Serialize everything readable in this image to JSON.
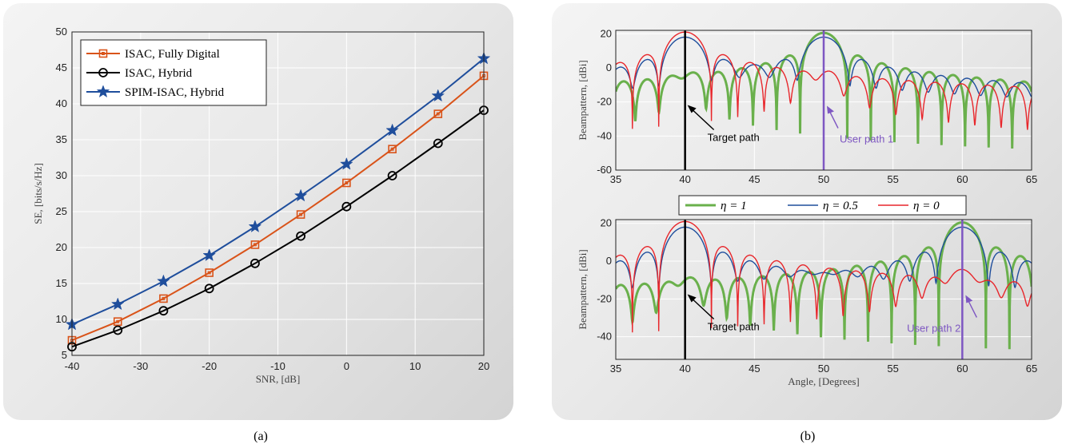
{
  "captions": {
    "a": "(a)",
    "b": "(b)"
  },
  "chart_data": [
    {
      "type": "line",
      "title": "",
      "xlabel": "SNR, [dB]",
      "ylabel": "SE, [bits/s/Hz]",
      "xlim": [
        -40,
        20
      ],
      "ylim": [
        5,
        50
      ],
      "xticks": [
        -40,
        -30,
        -20,
        -10,
        0,
        10,
        20
      ],
      "yticks": [
        5,
        10,
        15,
        20,
        25,
        30,
        35,
        40,
        45,
        50
      ],
      "grid": true,
      "legend_position": "top-left",
      "x": [
        -40,
        -33.33,
        -26.67,
        -20,
        -13.33,
        -6.67,
        0,
        6.67,
        13.33,
        20
      ],
      "series": [
        {
          "name": "ISAC, Fully Digital",
          "marker": "square",
          "color": "#d95319",
          "values": [
            7.1,
            9.7,
            12.9,
            16.5,
            20.4,
            24.6,
            29.0,
            33.7,
            38.6,
            43.9
          ]
        },
        {
          "name": "ISAC, Hybrid",
          "marker": "circle",
          "color": "#000000",
          "values": [
            6.2,
            8.5,
            11.2,
            14.3,
            17.8,
            21.6,
            25.7,
            30.0,
            34.5,
            39.1
          ]
        },
        {
          "name": "SPIM-ISAC, Hybrid",
          "marker": "star",
          "color": "#1f4e9c",
          "values": [
            9.3,
            12.1,
            15.3,
            18.9,
            22.9,
            27.2,
            31.6,
            36.3,
            41.1,
            46.3
          ]
        }
      ]
    },
    {
      "type": "line",
      "title": "",
      "xlabel": "",
      "ylabel": "Beampattern, [dBi]",
      "xlim": [
        35,
        65
      ],
      "ylim": [
        -60,
        22
      ],
      "xticks": [
        35,
        40,
        45,
        50,
        55,
        60,
        65
      ],
      "yticks": [
        -60,
        -40,
        -20,
        0,
        20
      ],
      "grid": true,
      "annotations": [
        {
          "text": "Target path",
          "x": 40,
          "color": "#000000"
        },
        {
          "text": "User path 1",
          "x": 50,
          "color": "#7e57c2"
        }
      ],
      "series": [
        {
          "name": "η = 1",
          "color": "#6ab04c",
          "main_lobes": [
            40,
            50
          ],
          "peaks_db": [
            -6,
            20.5
          ]
        },
        {
          "name": "η = 0.5",
          "color": "#1f4e9c",
          "main_lobes": [
            40,
            50
          ],
          "peaks_db": [
            18,
            18
          ]
        },
        {
          "name": "η = 0",
          "color": "#e8262b",
          "main_lobes": [
            40,
            50
          ],
          "peaks_db": [
            21,
            -6
          ]
        }
      ]
    },
    {
      "type": "line",
      "title": "",
      "xlabel": "Angle, [Degrees]",
      "ylabel": "Beampattern, [dBi]",
      "xlim": [
        35,
        65
      ],
      "ylim": [
        -52,
        22
      ],
      "xticks": [
        35,
        40,
        45,
        50,
        55,
        60,
        65
      ],
      "yticks": [
        -40,
        -20,
        0,
        20
      ],
      "grid": true,
      "annotations": [
        {
          "text": "Target path",
          "x": 40,
          "color": "#000000"
        },
        {
          "text": "User path 2",
          "x": 60,
          "color": "#7e57c2"
        }
      ],
      "series": [
        {
          "name": "η = 1",
          "color": "#6ab04c",
          "main_lobes": [
            40,
            60
          ],
          "peaks_db": [
            -12,
            20.5
          ]
        },
        {
          "name": "η = 0.5",
          "color": "#1f4e9c",
          "main_lobes": [
            40,
            60
          ],
          "peaks_db": [
            18,
            18
          ]
        },
        {
          "name": "η = 0",
          "color": "#e8262b",
          "main_lobes": [
            40,
            60
          ],
          "peaks_db": [
            21,
            -6
          ]
        }
      ]
    }
  ],
  "shared_legend": [
    "η = 1",
    "η = 0.5",
    "η = 0"
  ],
  "legend_math": [
    "η = 1",
    "η = 0.5",
    "η = 0"
  ]
}
